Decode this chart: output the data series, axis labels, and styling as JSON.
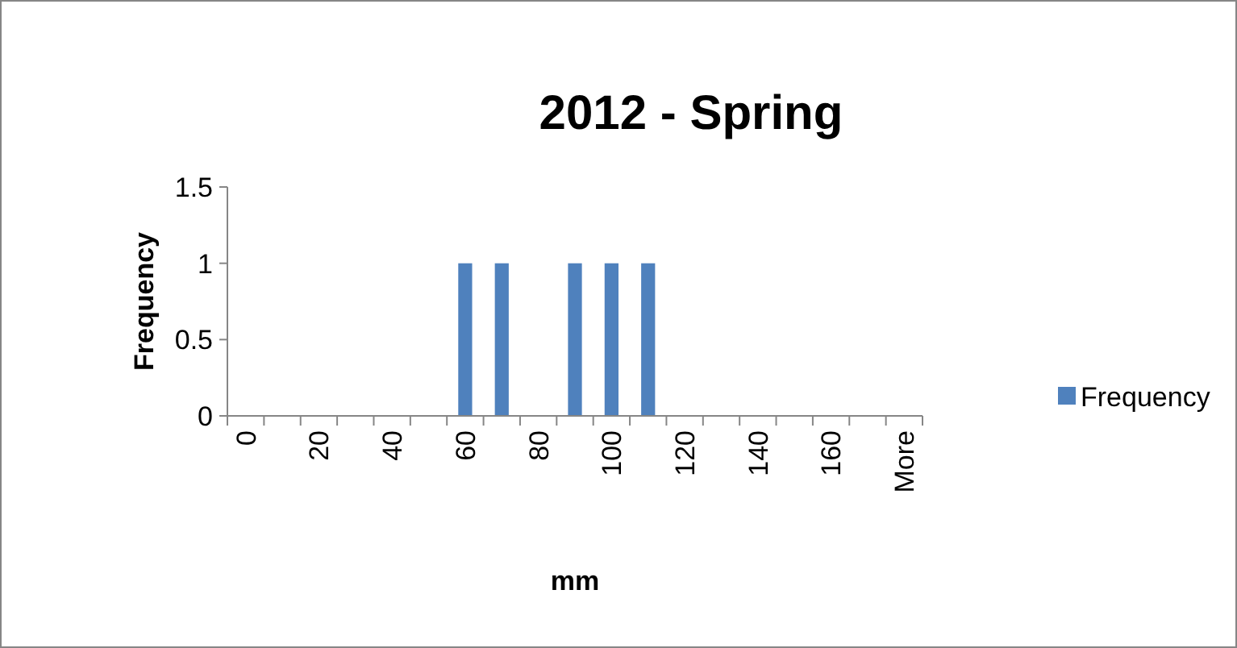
{
  "chart_data": {
    "type": "bar",
    "title": "2012 - Spring",
    "xlabel": "mm",
    "ylabel": "Frequency",
    "categories": [
      "0",
      null,
      "20",
      null,
      "40",
      null,
      "60",
      null,
      "80",
      null,
      "100",
      null,
      "120",
      null,
      "140",
      null,
      "160",
      null,
      "More"
    ],
    "series": [
      {
        "name": "Frequency",
        "color": "#4f81bd",
        "values": [
          0,
          0,
          0,
          0,
          0,
          0,
          1,
          1,
          0,
          1,
          1,
          1,
          0,
          0,
          0,
          0,
          0,
          0,
          0
        ]
      }
    ],
    "ylim": [
      0,
      1.5
    ],
    "yticks": [
      0,
      0.5,
      1,
      1.5
    ],
    "grid": false,
    "legend": "right"
  }
}
